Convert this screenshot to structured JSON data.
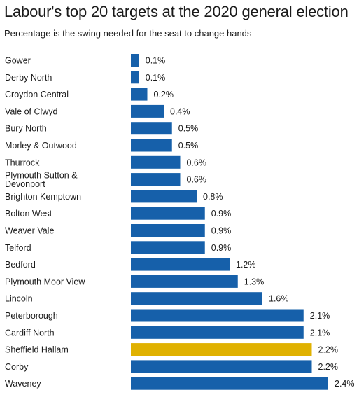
{
  "chart_data": {
    "type": "bar",
    "orientation": "horizontal",
    "title": "Labour's top 20 targets at the 2020 general election",
    "subtitle": "Percentage is the swing needed for the seat to change hands",
    "categories": [
      [
        "Gower"
      ],
      [
        "Derby North"
      ],
      [
        "Croydon Central"
      ],
      [
        "Vale of Clwyd"
      ],
      [
        "Bury North"
      ],
      [
        "Morley & Outwood"
      ],
      [
        "Thurrock"
      ],
      [
        "Plymouth Sutton &",
        "Devonport"
      ],
      [
        "Brighton Kemptown"
      ],
      [
        "Bolton West"
      ],
      [
        "Weaver Vale"
      ],
      [
        "Telford"
      ],
      [
        "Bedford"
      ],
      [
        "Plymouth Moor View"
      ],
      [
        "Lincoln"
      ],
      [
        "Peterborough"
      ],
      [
        "Cardiff North"
      ],
      [
        "Sheffield Hallam"
      ],
      [
        "Corby"
      ],
      [
        "Waveney"
      ]
    ],
    "values": [
      0.1,
      0.1,
      0.2,
      0.4,
      0.5,
      0.5,
      0.6,
      0.6,
      0.8,
      0.9,
      0.9,
      0.9,
      1.2,
      1.3,
      1.6,
      2.1,
      2.1,
      2.2,
      2.2,
      2.4
    ],
    "value_labels": [
      "0.1%",
      "0.1%",
      "0.2%",
      "0.4%",
      "0.5%",
      "0.5%",
      "0.6%",
      "0.6%",
      "0.8%",
      "0.9%",
      "0.9%",
      "0.9%",
      "1.2%",
      "1.3%",
      "1.6%",
      "2.1%",
      "2.1%",
      "2.2%",
      "2.2%",
      "2.4%"
    ],
    "highlighted_category": "Sheffield Hallam",
    "xlim": [
      0,
      2.4
    ],
    "colors": {
      "bar": "#1660aa",
      "highlight": "#e0b100"
    },
    "grid": false,
    "legend": "none"
  }
}
